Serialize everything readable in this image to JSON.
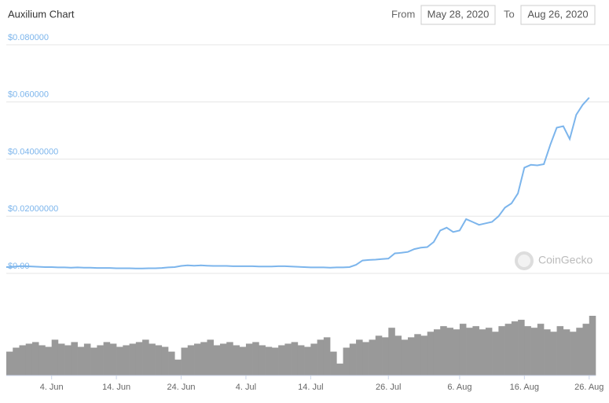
{
  "chart_data": {
    "type": "line",
    "title": "Auxilium Chart",
    "range_picker": {
      "from_label": "From",
      "from": "May 28, 2020",
      "to_label": "To",
      "to": "Aug 26, 2020"
    },
    "watermark": "CoinGecko",
    "x": [
      "2020-05-28",
      "2020-05-29",
      "2020-05-30",
      "2020-05-31",
      "2020-06-01",
      "2020-06-02",
      "2020-06-03",
      "2020-06-04",
      "2020-06-05",
      "2020-06-06",
      "2020-06-07",
      "2020-06-08",
      "2020-06-09",
      "2020-06-10",
      "2020-06-11",
      "2020-06-12",
      "2020-06-13",
      "2020-06-14",
      "2020-06-15",
      "2020-06-16",
      "2020-06-17",
      "2020-06-18",
      "2020-06-19",
      "2020-06-20",
      "2020-06-21",
      "2020-06-22",
      "2020-06-23",
      "2020-06-24",
      "2020-06-25",
      "2020-06-26",
      "2020-06-27",
      "2020-06-28",
      "2020-06-29",
      "2020-06-30",
      "2020-07-01",
      "2020-07-02",
      "2020-07-03",
      "2020-07-04",
      "2020-07-05",
      "2020-07-06",
      "2020-07-07",
      "2020-07-08",
      "2020-07-09",
      "2020-07-10",
      "2020-07-11",
      "2020-07-12",
      "2020-07-13",
      "2020-07-14",
      "2020-07-15",
      "2020-07-16",
      "2020-07-17",
      "2020-07-18",
      "2020-07-19",
      "2020-07-20",
      "2020-07-21",
      "2020-07-22",
      "2020-07-23",
      "2020-07-24",
      "2020-07-25",
      "2020-07-26",
      "2020-07-27",
      "2020-07-28",
      "2020-07-29",
      "2020-07-30",
      "2020-07-31",
      "2020-08-01",
      "2020-08-02",
      "2020-08-03",
      "2020-08-04",
      "2020-08-05",
      "2020-08-06",
      "2020-08-07",
      "2020-08-08",
      "2020-08-09",
      "2020-08-10",
      "2020-08-11",
      "2020-08-12",
      "2020-08-13",
      "2020-08-14",
      "2020-08-15",
      "2020-08-16",
      "2020-08-17",
      "2020-08-18",
      "2020-08-19",
      "2020-08-20",
      "2020-08-21",
      "2020-08-22",
      "2020-08-23",
      "2020-08-24",
      "2020-08-25",
      "2020-08-26"
    ],
    "series": [
      {
        "name": "Price",
        "color": "#7cb5ec",
        "values": [
          0.0022,
          0.0023,
          0.0025,
          0.0025,
          0.0024,
          0.0023,
          0.0022,
          0.0022,
          0.0021,
          0.0021,
          0.002,
          0.0021,
          0.002,
          0.002,
          0.0019,
          0.0019,
          0.0019,
          0.0018,
          0.0018,
          0.0018,
          0.0017,
          0.0017,
          0.0018,
          0.0018,
          0.0019,
          0.0021,
          0.0022,
          0.0026,
          0.0028,
          0.0027,
          0.0028,
          0.0027,
          0.0026,
          0.0026,
          0.0026,
          0.0025,
          0.0025,
          0.0025,
          0.0025,
          0.0024,
          0.0024,
          0.0024,
          0.0025,
          0.0025,
          0.0024,
          0.0023,
          0.0022,
          0.0021,
          0.0021,
          0.0021,
          0.002,
          0.0021,
          0.0021,
          0.0022,
          0.003,
          0.0045,
          0.0047,
          0.0048,
          0.005,
          0.0052,
          0.007,
          0.0072,
          0.0075,
          0.0085,
          0.009,
          0.0092,
          0.011,
          0.015,
          0.016,
          0.0145,
          0.015,
          0.019,
          0.018,
          0.017,
          0.0175,
          0.018,
          0.02,
          0.023,
          0.0245,
          0.028,
          0.037,
          0.038,
          0.0378,
          0.0382,
          0.045,
          0.051,
          0.0515,
          0.047,
          0.0555,
          0.059,
          0.0615
        ]
      },
      {
        "name": "Volume",
        "color": "#999999",
        "values": [
          30,
          35,
          38,
          40,
          42,
          38,
          36,
          45,
          40,
          38,
          42,
          36,
          40,
          35,
          38,
          42,
          40,
          36,
          38,
          40,
          42,
          45,
          40,
          38,
          36,
          30,
          20,
          35,
          38,
          40,
          42,
          45,
          38,
          40,
          42,
          38,
          36,
          40,
          42,
          38,
          36,
          35,
          38,
          40,
          42,
          38,
          36,
          40,
          45,
          48,
          30,
          15,
          35,
          40,
          45,
          42,
          45,
          50,
          48,
          60,
          50,
          45,
          48,
          52,
          50,
          55,
          58,
          62,
          60,
          58,
          65,
          60,
          62,
          58,
          60,
          55,
          62,
          65,
          68,
          70,
          62,
          60,
          65,
          58,
          55,
          62,
          58,
          55,
          60,
          65,
          75
        ]
      }
    ],
    "xlim": [
      "2020-05-28",
      "2020-08-27"
    ],
    "xticks": [
      {
        "value": "2020-06-04",
        "label": "4. Jun"
      },
      {
        "value": "2020-06-14",
        "label": "14. Jun"
      },
      {
        "value": "2020-06-24",
        "label": "24. Jun"
      },
      {
        "value": "2020-07-04",
        "label": "4. Jul"
      },
      {
        "value": "2020-07-14",
        "label": "14. Jul"
      },
      {
        "value": "2020-07-26",
        "label": "26. Jul"
      },
      {
        "value": "2020-08-06",
        "label": "6. Aug"
      },
      {
        "value": "2020-08-16",
        "label": "16. Aug"
      },
      {
        "value": "2020-08-26",
        "label": "26. Aug"
      }
    ],
    "ylim": [
      0,
      0.08
    ],
    "yticks": [
      {
        "value": 0,
        "label": "$0.00"
      },
      {
        "value": 0.02,
        "label": "$0.02000000"
      },
      {
        "value": 0.04,
        "label": "$0.04000000"
      },
      {
        "value": 0.06,
        "label": "$0.060000"
      },
      {
        "value": 0.08,
        "label": "$0.080000"
      }
    ],
    "grid": true
  }
}
